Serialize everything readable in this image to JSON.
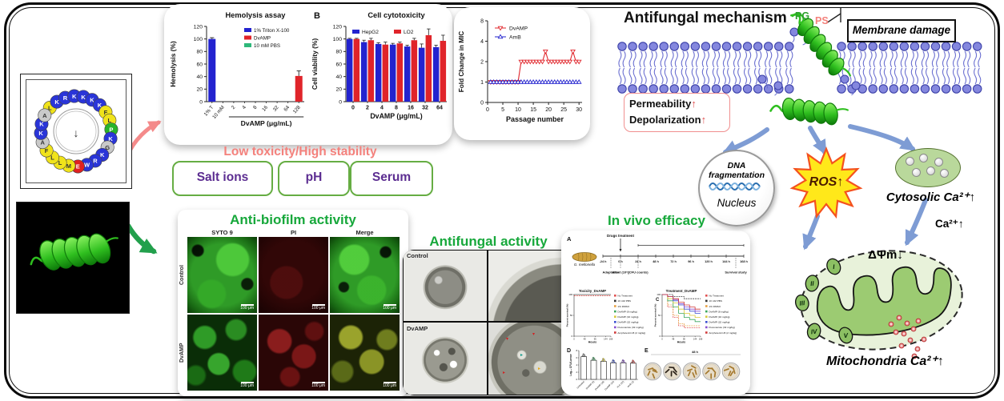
{
  "peptide": {
    "wheel_arrow": "↓",
    "residues": [
      {
        "aa": "L",
        "c": "y"
      },
      {
        "aa": "K",
        "c": "b"
      },
      {
        "aa": "R",
        "c": "b"
      },
      {
        "aa": "K",
        "c": "b"
      },
      {
        "aa": "K",
        "c": "b"
      },
      {
        "aa": "K",
        "c": "b"
      },
      {
        "aa": "K",
        "c": "b"
      },
      {
        "aa": "F",
        "c": "y"
      },
      {
        "aa": "L",
        "c": "y"
      },
      {
        "aa": "P",
        "c": "g"
      },
      {
        "aa": "K",
        "c": "b"
      },
      {
        "aa": "G",
        "c": "gr"
      },
      {
        "aa": "K",
        "c": "b"
      },
      {
        "aa": "R",
        "c": "b"
      },
      {
        "aa": "W",
        "c": "b"
      },
      {
        "aa": "E",
        "c": "r"
      },
      {
        "aa": "M",
        "c": "y"
      },
      {
        "aa": "L",
        "c": "y"
      },
      {
        "aa": "L",
        "c": "y"
      },
      {
        "aa": "F",
        "c": "y"
      },
      {
        "aa": "A",
        "c": "gr"
      },
      {
        "aa": "K",
        "c": "b"
      },
      {
        "aa": "K",
        "c": "b"
      },
      {
        "aa": "A",
        "c": "gr"
      }
    ]
  },
  "stability": {
    "heading": "Low toxicity/High stability",
    "box1": "Salt ions",
    "box2": "pH",
    "box3": "Serum"
  },
  "biofilm": {
    "title": "Anti-biofilm activity",
    "col1": "SYTO 9",
    "col2": "PI",
    "col3": "Merge",
    "row1": "Control",
    "row2": "DvAMP",
    "scalebar": "100 μm"
  },
  "antifungal": {
    "title": "Antifungal activity",
    "row1": "Control",
    "row2": "DvAMP"
  },
  "invivo": {
    "title": "In vivo efficacy",
    "panel_a": {
      "label": "A",
      "organism": "G. mellonella",
      "drugs": "Drugs treatment",
      "timeline": [
        "-24 h",
        "0 h",
        "24 h",
        "48 h",
        "72 h",
        "96 h",
        "120 h",
        "144 h",
        "168 h"
      ],
      "events": [
        "Adaptation",
        "Infect (10⁶)",
        "(CFU counts)",
        "Survival study"
      ]
    },
    "panel_d_label": "D",
    "panel_e": {
      "label": "E",
      "header": "48 h"
    }
  },
  "mechanism": {
    "title": "Antifungal mechanism",
    "pg": "PG",
    "ps": "PS",
    "membrane_damage": "Membrane damage",
    "permeability": "Permeability",
    "depolarization": "Depolarization",
    "up": "↑",
    "dna1": "DNA",
    "dna2": "fragmentation",
    "nucleus": "Nucleus",
    "ros": "ROS↑",
    "cytosolic": "Cytosolic Ca²⁺↑",
    "ca": "Ca²⁺↑",
    "dym": "ΔΨm↓",
    "mito": "Mitochondria Ca²⁺↑",
    "complexes": [
      "I",
      "II",
      "III",
      "IV",
      "V"
    ]
  },
  "chart_data": [
    {
      "id": "hemolysis",
      "type": "bar",
      "title": "Hemolysis assay",
      "ylabel": "Hemolysis (%)",
      "xlabel": "DvAMP (μg/mL)",
      "ylim": [
        0,
        120
      ],
      "yticks": [
        0,
        20,
        40,
        60,
        80,
        100,
        120
      ],
      "categories": [
        "1% T",
        "10 mM",
        "2",
        "4",
        "8",
        "16",
        "32",
        "64",
        "128"
      ],
      "values": [
        100,
        0,
        0,
        0,
        0,
        0,
        0,
        0,
        41
      ],
      "errors": [
        2,
        0,
        0,
        0,
        0,
        0,
        0,
        0,
        8
      ],
      "bar_colors": [
        "#2323cf",
        "#2eb87a",
        "#e0242a",
        "#e0242a",
        "#e0242a",
        "#e0242a",
        "#e0242a",
        "#e0242a",
        "#e0242a"
      ],
      "legend": [
        {
          "label": "1% Triton X-100",
          "color": "#2323cf"
        },
        {
          "label": "DvAMP",
          "color": "#e0242a"
        },
        {
          "label": "10 mM PBS",
          "color": "#2eb87a"
        }
      ],
      "xlabel_span": [
        2,
        8
      ]
    },
    {
      "id": "cytotoxicity",
      "type": "bar",
      "panel": "B",
      "title": "Cell cytotoxicity",
      "ylabel": "Cell viability (%)",
      "xlabel": "DvAMP (μg/mL)",
      "ylim": [
        0,
        120
      ],
      "yticks": [
        0,
        20,
        40,
        60,
        80,
        100,
        120
      ],
      "categories": [
        "0",
        "2",
        "4",
        "8",
        "16",
        "32",
        "64"
      ],
      "series": [
        {
          "name": "HepG2",
          "color": "#2323cf",
          "values": [
            100,
            95,
            92,
            91,
            88,
            86,
            87
          ],
          "errors": [
            1,
            3,
            2,
            2,
            2,
            6,
            3
          ]
        },
        {
          "name": "LO2",
          "color": "#e0242a",
          "values": [
            100,
            98,
            91,
            93,
            98,
            106,
            97
          ],
          "errors": [
            1,
            3,
            4,
            2,
            3,
            10,
            9
          ]
        }
      ]
    },
    {
      "id": "mic",
      "type": "line",
      "ylabel": "Fold Change in MIC",
      "xlabel": "Passage number",
      "ytick_labels": [
        "0",
        "1",
        "2",
        "4",
        "8"
      ],
      "xticks": [
        0,
        5,
        10,
        15,
        20,
        25,
        30
      ],
      "series": [
        {
          "name": "DvAMP",
          "color": "#e0242a",
          "marker": "triangle-down",
          "levels": [
            1,
            1,
            1,
            1,
            1,
            1,
            1,
            1,
            1,
            1,
            2,
            2,
            2,
            2,
            2,
            2,
            2,
            2,
            2.5,
            2,
            2,
            2,
            2,
            2,
            2,
            2,
            2,
            2.5,
            2,
            2
          ]
        },
        {
          "name": "AmB",
          "color": "#2323cf",
          "marker": "triangle-up",
          "levels": [
            1,
            1,
            1,
            1,
            1,
            1,
            1,
            1,
            1,
            1,
            1,
            1,
            1,
            1,
            1,
            1,
            1,
            1,
            1,
            1,
            1,
            1,
            1,
            1,
            1,
            1,
            1,
            1,
            1,
            1
          ]
        }
      ]
    },
    {
      "id": "toxicity_invivo",
      "type": "line",
      "title": "Toxicity_DvAMP",
      "ylabel": "Percent survival (%)",
      "xlabel": "Hours",
      "x": [
        0,
        24,
        48,
        72,
        96,
        120,
        144,
        168
      ],
      "series": [
        {
          "name": "all groups",
          "color": "#555555",
          "values": [
            100,
            100,
            100,
            100,
            100,
            100,
            100,
            100
          ]
        },
        {
          "name": "DvAMP high dose",
          "color": "#e0504a",
          "dash": true,
          "values": [
            97,
            97,
            97,
            97,
            97,
            97,
            97,
            97
          ]
        }
      ]
    },
    {
      "id": "treatment_invivo",
      "type": "line",
      "title": "Treatment_DvAMP",
      "ylabel": "Percent survival (%)",
      "xlabel": "Hours",
      "x": [
        0,
        24,
        48,
        72,
        96,
        120,
        144,
        168
      ],
      "series": [
        {
          "name": "No Treatment",
          "color": "#e05050",
          "dash": true,
          "values": [
            100,
            70,
            45,
            25,
            20,
            20,
            20,
            20
          ]
        },
        {
          "name": "10 mM PBS",
          "color": "#333333",
          "dash": true,
          "values": [
            100,
            100,
            95,
            95,
            90,
            90,
            90,
            90
          ]
        },
        {
          "name": "1% DMSO",
          "color": "#e8a040",
          "dash": true,
          "values": [
            100,
            75,
            50,
            30,
            25,
            25,
            25,
            25
          ]
        },
        {
          "name": "DvAMP (8 mg/kg)",
          "color": "#3aa65c",
          "values": [
            100,
            85,
            70,
            55,
            45,
            40,
            35,
            35
          ]
        },
        {
          "name": "DvAMP (16 mg/kg)",
          "color": "#d8c83a",
          "values": [
            100,
            90,
            80,
            65,
            55,
            50,
            45,
            45
          ]
        },
        {
          "name": "DvAMP (32 mg/kg)",
          "color": "#3a4fd0",
          "values": [
            100,
            95,
            85,
            75,
            65,
            60,
            55,
            55
          ]
        },
        {
          "name": "Fluconazole (32 mg/kg)",
          "color": "#8a4fd0",
          "values": [
            100,
            95,
            88,
            78,
            70,
            65,
            60,
            60
          ]
        },
        {
          "name": "Amphotericin B (2 mg/kg)",
          "color": "#d03a3a",
          "values": [
            100,
            95,
            90,
            82,
            75,
            70,
            65,
            65
          ]
        }
      ]
    },
    {
      "id": "cfu",
      "type": "bar",
      "panel": "D",
      "ylabel": "Log₁₀ CFU/Larvae",
      "ylim": [
        0,
        8
      ],
      "categories": [
        "Untreated",
        "DvAMP (8)",
        "DvAMP (16)",
        "DvAMP (32)",
        "FLC (32)",
        "AmB (2)"
      ],
      "values": [
        6.3,
        5.3,
        5.0,
        4.6,
        4.6,
        4.5
      ],
      "dot_colors": [
        "#888888",
        "#3aa65c",
        "#d8c83a",
        "#3a4fd0",
        "#8a4fd0",
        "#d03a3a"
      ]
    }
  ]
}
